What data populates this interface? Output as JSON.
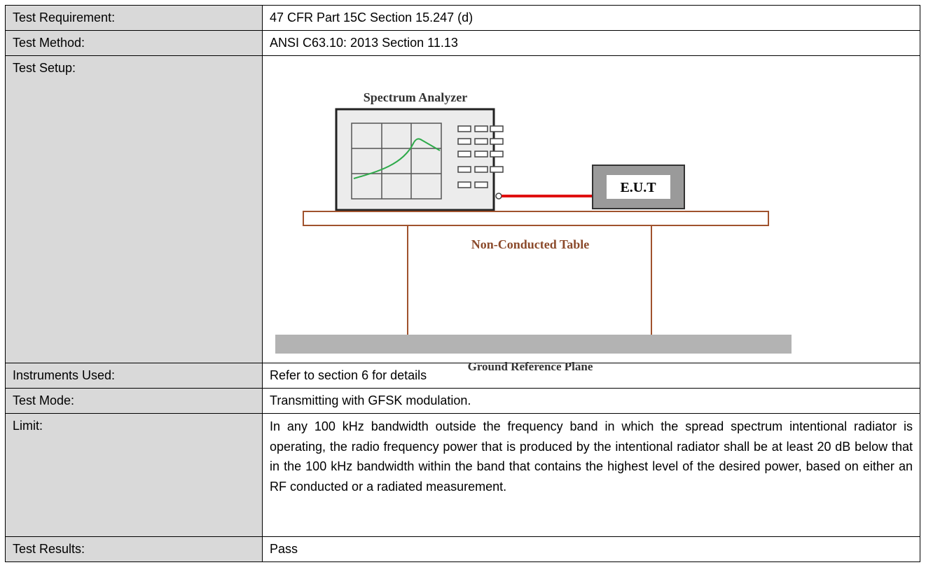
{
  "table": {
    "rows": [
      {
        "label": "Test Requirement:",
        "value": "47 CFR Part 15C Section 15.247 (d)"
      },
      {
        "label": "Test Method:",
        "value": "ANSI C63.10: 2013 Section 11.13"
      },
      {
        "label": "Test Setup:"
      },
      {
        "label": "Instruments Used:",
        "value": "Refer to section 6 for details"
      },
      {
        "label": "Test Mode:",
        "value": "Transmitting with GFSK modulation."
      },
      {
        "label": "Limit:",
        "value": "In any 100 kHz bandwidth outside the frequency band in which the spread spectrum intentional radiator is operating, the radio frequency power that is produced by the intentional radiator shall be at least 20 dB below that in the 100 kHz bandwidth within the band that contains the highest level of the desired power, based on either an RF conducted or a radiated measurement."
      },
      {
        "label": "Test Results:",
        "value": "Pass"
      }
    ]
  },
  "setup_diagram": {
    "analyzer": "Spectrum Analyzer",
    "eut": "E.U.T",
    "table": "Non-Conducted Table",
    "ground": "Ground Reference Plane"
  }
}
